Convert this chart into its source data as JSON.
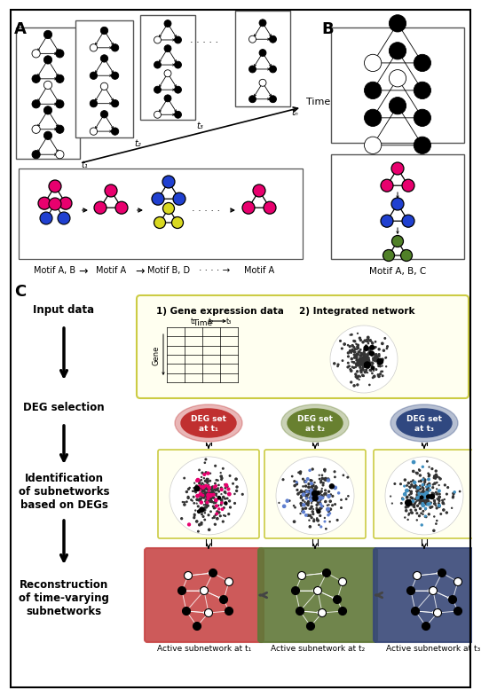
{
  "bg_color": "#ffffff",
  "yellow_bg": "#fffff0",
  "panel_A_label": "A",
  "panel_B_label": "B",
  "panel_C_label": "C",
  "color_pink": "#e8006e",
  "color_blue": "#2040d0",
  "color_yellow": "#d8d820",
  "color_green": "#508028",
  "color_deg_red": "#c03030",
  "color_deg_green": "#688030",
  "color_deg_blue": "#304880",
  "color_panel_red": "#c84848",
  "color_panel_green": "#607838",
  "color_panel_blue": "#384878",
  "time_label": "Time",
  "motif_ABC_label": "Motif A, B, C",
  "motif_labels": [
    "Motif A, B",
    "Motif A",
    "Motif B, D",
    "Motif A"
  ],
  "gene_expr_label": "1) Gene expression data",
  "integrated_label": "2) Integrated network",
  "flow_labels": [
    "Input data",
    "DEG selection",
    "Identification\nof subnetworks\nbased on DEGs",
    "Reconstruction\nof time-varying\nsubnetworks"
  ],
  "deg_labels": [
    "DEG set\nat t₁",
    "DEG set\nat t₂",
    "DEG set\nat t₃"
  ],
  "active_labels": [
    "Active subnetwork at t₁",
    "Active subnetwork at t₂",
    "Active subnetwork at t₃"
  ]
}
